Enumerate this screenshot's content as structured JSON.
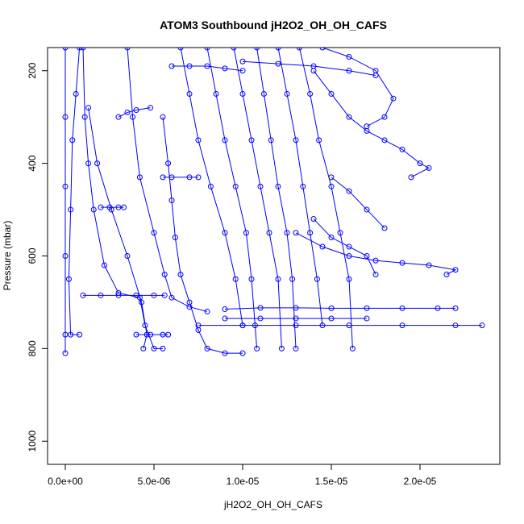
{
  "chart_data": {
    "type": "scatter",
    "title": "ATOM3 Southbound jH2O2_OH_OH_CAFS",
    "xlabel": "jH2O2_OH_OH_CAFS",
    "ylabel": "Pressure (mbar)",
    "xlim": [
      -1e-06,
      2.45e-05
    ],
    "ylim": [
      1050,
      150
    ],
    "y_reversed": true,
    "x_ticks": [
      {
        "value": 0,
        "label": "0.0e+00"
      },
      {
        "value": 5e-06,
        "label": "5.0e-06"
      },
      {
        "value": 1e-05,
        "label": "1.0e-05"
      },
      {
        "value": 1.5e-05,
        "label": "1.5e-05"
      },
      {
        "value": 2e-05,
        "label": "2.0e-05"
      }
    ],
    "y_ticks": [
      {
        "value": 200,
        "label": "200"
      },
      {
        "value": 400,
        "label": "400"
      },
      {
        "value": 600,
        "label": "600"
      },
      {
        "value": 800,
        "label": "800"
      },
      {
        "value": 1000,
        "label": "1000"
      }
    ],
    "grid": false,
    "color": "#0000ff",
    "marker": "open-circle",
    "connected": true,
    "series": [
      {
        "x": [
          0.0,
          0.0,
          0.0,
          0.0,
          0.0,
          0.0
        ],
        "y": [
          150,
          300,
          450,
          600,
          770,
          810
        ]
      },
      {
        "x": [
          8e-07,
          6e-07,
          4e-07,
          3e-07,
          2e-07,
          3e-07,
          8e-07
        ],
        "y": [
          150,
          250,
          350,
          500,
          650,
          770,
          770
        ]
      },
      {
        "x": [
          1e-06,
          1.1e-06,
          1.3e-06,
          1.6e-06,
          2.2e-06,
          3e-06,
          4.2e-06,
          4.5e-06,
          5e-06,
          5.5e-06
        ],
        "y": [
          150,
          300,
          400,
          500,
          620,
          680,
          690,
          750,
          800,
          800
        ]
      },
      {
        "x": [
          1.3e-06,
          1.8e-06,
          2.6e-06,
          3.5e-06,
          4.3e-06,
          4.6e-06,
          4.4e-06
        ],
        "y": [
          280,
          400,
          500,
          600,
          700,
          770,
          800
        ]
      },
      {
        "x": [
          3.5e-06,
          3.8e-06,
          4.2e-06,
          5e-06,
          5.6e-06,
          6e-06,
          7e-06,
          8e-06
        ],
        "y": [
          150,
          300,
          430,
          550,
          640,
          690,
          710,
          720
        ]
      },
      {
        "x": [
          5.5e-06,
          5.8e-06,
          6e-06,
          6.2e-06,
          6.5e-06,
          7e-06,
          7.5e-06,
          8e-06,
          9e-06,
          1e-05
        ],
        "y": [
          300,
          400,
          480,
          560,
          640,
          700,
          760,
          800,
          810,
          810
        ]
      },
      {
        "x": [
          6.5e-06,
          7e-06,
          7.5e-06,
          8.2e-06,
          9e-06,
          9.6e-06,
          1e-05
        ],
        "y": [
          150,
          250,
          350,
          450,
          550,
          650,
          750
        ]
      },
      {
        "x": [
          8e-06,
          8.5e-06,
          9e-06,
          9.6e-06,
          1.02e-05,
          1.05e-05,
          1.07e-05,
          1.08e-05
        ],
        "y": [
          150,
          250,
          350,
          450,
          550,
          650,
          750,
          800
        ]
      },
      {
        "x": [
          9.5e-06,
          1e-05,
          1.05e-05,
          1.1e-05,
          1.15e-05,
          1.2e-05,
          1.22e-05
        ],
        "y": [
          150,
          250,
          350,
          450,
          550,
          650,
          800
        ]
      },
      {
        "x": [
          1.08e-05,
          1.12e-05,
          1.16e-05,
          1.2e-05,
          1.25e-05,
          1.28e-05,
          1.3e-05
        ],
        "y": [
          150,
          250,
          350,
          450,
          550,
          650,
          800
        ]
      },
      {
        "x": [
          1.2e-05,
          1.25e-05,
          1.3e-05,
          1.34e-05,
          1.38e-05,
          1.42e-05,
          1.45e-05
        ],
        "y": [
          150,
          250,
          350,
          450,
          550,
          650,
          750
        ]
      },
      {
        "x": [
          1.32e-05,
          1.38e-05,
          1.43e-05,
          1.5e-05,
          1.55e-05,
          1.6e-05,
          1.62e-05
        ],
        "y": [
          150,
          250,
          350,
          450,
          550,
          650,
          800
        ]
      },
      {
        "x": [
          1.4e-05,
          1.5e-05,
          1.6e-05,
          1.7e-05,
          1.8e-05,
          1.9e-05,
          2e-05,
          2.05e-05,
          1.95e-05
        ],
        "y": [
          200,
          250,
          300,
          330,
          350,
          370,
          400,
          410,
          430
        ]
      },
      {
        "x": [
          1.45e-05,
          1.6e-05,
          1.75e-05,
          1.85e-05,
          1.8e-05,
          1.7e-05
        ],
        "y": [
          150,
          170,
          200,
          260,
          300,
          320
        ]
      },
      {
        "x": [
          1.3e-05,
          1.45e-05,
          1.6e-05,
          1.75e-05,
          1.9e-05,
          2.05e-05,
          2.2e-05,
          2.15e-05
        ],
        "y": [
          550,
          580,
          600,
          610,
          615,
          620,
          630,
          640
        ]
      },
      {
        "x": [
          9e-06,
          1.1e-05,
          1.3e-05,
          1.5e-05,
          1.7e-05,
          1.9e-05,
          2.1e-05,
          2.2e-05
        ],
        "y": [
          715,
          712,
          712,
          713,
          713,
          713,
          713,
          713
        ]
      },
      {
        "x": [
          7.5e-06,
          1e-05,
          1.3e-05,
          1.6e-05,
          1.9e-05,
          2.2e-05,
          2.35e-05
        ],
        "y": [
          750,
          750,
          750,
          750,
          750,
          750,
          750
        ]
      },
      {
        "x": [
          9e-06,
          1.1e-05,
          1.3e-05,
          1.5e-05,
          1.7e-05
        ],
        "y": [
          735,
          735,
          735,
          735,
          735
        ]
      },
      {
        "x": [
          6e-06,
          7e-06,
          8e-06,
          9e-06,
          1e-05
        ],
        "y": [
          190,
          190,
          190,
          195,
          200
        ]
      },
      {
        "x": [
          1e-05,
          1.2e-05,
          1.4e-05,
          1.6e-05,
          1.75e-05
        ],
        "y": [
          180,
          185,
          190,
          200,
          210
        ]
      },
      {
        "x": [
          2e-06,
          2.5e-06,
          3e-06,
          3.3e-06
        ],
        "y": [
          495,
          495,
          495,
          495
        ]
      },
      {
        "x": [
          3e-06,
          3.5e-06,
          4e-06,
          4.8e-06
        ],
        "y": [
          300,
          290,
          285,
          280
        ]
      },
      {
        "x": [
          1e-06,
          2e-06,
          3e-06,
          4e-06,
          5e-06,
          5.6e-06
        ],
        "y": [
          685,
          685,
          685,
          685,
          685,
          685
        ]
      },
      {
        "x": [
          5.5e-06,
          6e-06,
          7e-06,
          7.5e-06
        ],
        "y": [
          430,
          430,
          430,
          430
        ]
      },
      {
        "x": [
          4e-06,
          4.8e-06,
          5.5e-06,
          5.8e-06
        ],
        "y": [
          770,
          770,
          770,
          770
        ]
      },
      {
        "x": [
          1.4e-05,
          1.5e-05,
          1.6e-05,
          1.7e-05,
          1.75e-05
        ],
        "y": [
          520,
          560,
          580,
          600,
          640
        ]
      },
      {
        "x": [
          1.5e-05,
          1.6e-05,
          1.7e-05,
          1.8e-05
        ],
        "y": [
          430,
          460,
          500,
          540
        ]
      }
    ]
  }
}
